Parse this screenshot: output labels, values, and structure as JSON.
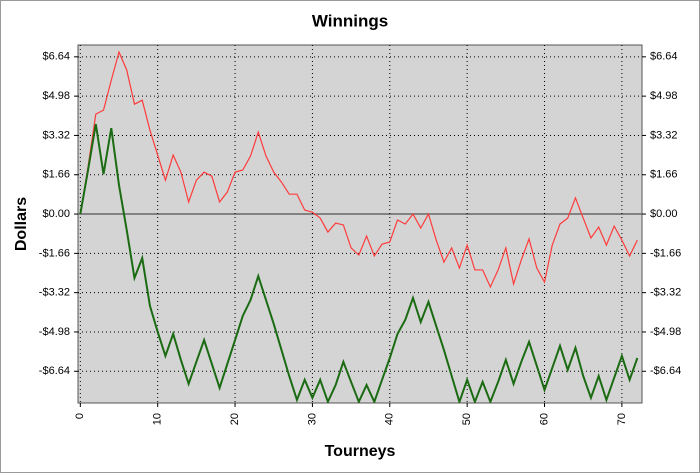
{
  "chart_data": {
    "type": "line",
    "title": "Winnings",
    "x_label": "Tourneys",
    "y_label": "Dollars",
    "x": [
      0,
      1,
      2,
      3,
      4,
      5,
      6,
      7,
      8,
      9,
      10,
      11,
      12,
      13,
      14,
      15,
      16,
      17,
      18,
      19,
      20,
      21,
      22,
      23,
      24,
      25,
      26,
      27,
      28,
      29,
      30,
      31,
      32,
      33,
      34,
      35,
      36,
      37,
      38,
      39,
      40,
      41,
      42,
      43,
      44,
      45,
      46,
      47,
      48,
      49,
      50,
      51,
      52,
      53,
      54,
      55,
      56,
      57,
      58,
      59,
      60,
      61,
      62,
      63,
      64,
      65,
      66,
      67,
      68,
      69,
      70,
      71,
      72
    ],
    "series": [
      {
        "color": "#ff3b3b",
        "values": [
          0,
          2.0,
          4.22,
          4.39,
          5.65,
          6.84,
          6.08,
          4.64,
          4.81,
          3.54,
          2.49,
          1.43,
          2.49,
          1.77,
          0.51,
          1.43,
          1.77,
          1.6,
          0.51,
          0.93,
          1.77,
          1.86,
          2.45,
          3.46,
          2.45,
          1.77,
          1.35,
          0.84,
          0.84,
          0.17,
          0.08,
          -0.17,
          -0.76,
          -0.38,
          -0.46,
          -1.43,
          -1.73,
          -0.93,
          -1.77,
          -1.27,
          -1.18,
          -0.25,
          -0.42,
          0,
          -0.59,
          0,
          -1.1,
          -2.03,
          -1.43,
          -2.28,
          -1.31,
          -2.36,
          -2.36,
          -3.08,
          -2.36,
          -1.43,
          -2.95,
          -1.94,
          -1.05,
          -2.28,
          -2.87,
          -1.31,
          -0.42,
          -0.17,
          0.68,
          -0.17,
          -1.01,
          -0.55,
          -1.31,
          -0.51,
          -1.1,
          -1.77,
          -1.1
        ]
      },
      {
        "color": "#1a6b12",
        "values": [
          0,
          1.86,
          3.8,
          1.69,
          3.63,
          1.22,
          -0.68,
          -2.7,
          -1.86,
          -3.88,
          -4.98,
          -5.99,
          -5.06,
          -6.16,
          -7.17,
          -6.24,
          -5.32,
          -6.33,
          -7.34,
          -6.33,
          -5.32,
          -4.3,
          -3.63,
          -2.62,
          -3.63,
          -4.64,
          -5.74,
          -6.84,
          -7.85,
          -7.0,
          -7.76,
          -7.0,
          -7.93,
          -7.22,
          -6.24,
          -7.09,
          -7.93,
          -7.22,
          -7.93,
          -7.0,
          -6.08,
          -5.06,
          -4.47,
          -3.54,
          -4.56,
          -3.71,
          -4.73,
          -5.74,
          -6.84,
          -7.93,
          -7.0,
          -7.93,
          -7.09,
          -7.93,
          -7.09,
          -6.16,
          -7.17,
          -6.24,
          -5.4,
          -6.41,
          -7.43,
          -6.5,
          -5.57,
          -6.58,
          -5.65,
          -6.84,
          -7.76,
          -6.84,
          -7.85,
          -6.92,
          -5.99,
          -7.0,
          -6.08
        ]
      }
    ],
    "xlim": [
      -0.3,
      72.6
    ],
    "xticks": [
      0,
      10,
      20,
      30,
      40,
      50,
      60,
      70
    ],
    "ylim": [
      -7.98,
      7.14
    ],
    "yticks": [
      {
        "value": -6.64,
        "label": "-$6.64"
      },
      {
        "value": -4.98,
        "label": "-$4.98"
      },
      {
        "value": -3.32,
        "label": "-$3.32"
      },
      {
        "value": -1.66,
        "label": "-$1.66"
      },
      {
        "value": 0,
        "label": "$0.00"
      },
      {
        "value": 1.66,
        "label": "$1.66"
      },
      {
        "value": 3.32,
        "label": "$3.32"
      },
      {
        "value": 4.98,
        "label": "$4.98"
      },
      {
        "value": 6.64,
        "label": "$6.64"
      }
    ],
    "grid": true
  }
}
